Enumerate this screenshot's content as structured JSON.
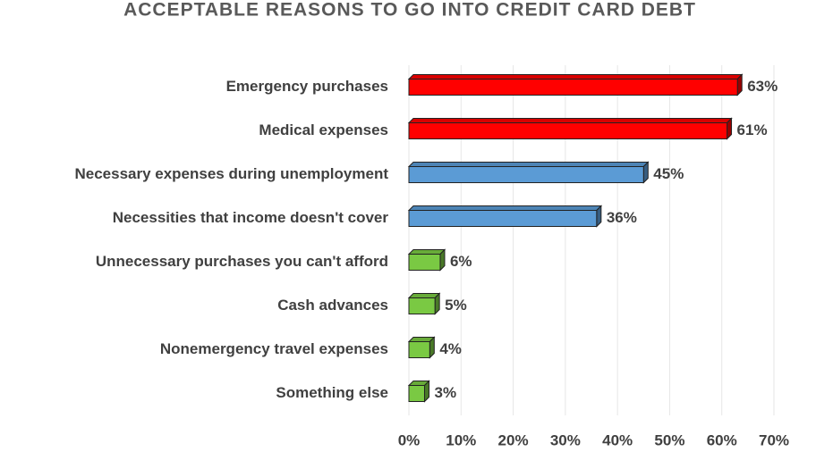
{
  "chart_data": {
    "type": "bar",
    "orientation": "horizontal",
    "title": "ACCEPTABLE REASONS TO GO INTO CREDIT CARD DEBT",
    "categories": [
      "Emergency purchases",
      "Medical expenses",
      "Necessary expenses during unemployment",
      "Necessities that income doesn't cover",
      "Unnecessary purchases you can't afford",
      "Cash advances",
      "Nonemergency travel expenses",
      "Something else"
    ],
    "values": [
      63,
      61,
      45,
      36,
      6,
      5,
      4,
      3
    ],
    "value_labels": [
      "63%",
      "61%",
      "45%",
      "36%",
      "6%",
      "5%",
      "4%",
      "3%"
    ],
    "colors": [
      "#ff0000",
      "#ff0000",
      "#5b9bd5",
      "#5b9bd5",
      "#7ac943",
      "#7ac943",
      "#7ac943",
      "#7ac943"
    ],
    "xlim": [
      0,
      70
    ],
    "xticks": [
      {
        "value": 0,
        "label": "0%"
      },
      {
        "value": 10,
        "label": "10%"
      },
      {
        "value": 20,
        "label": "20%"
      },
      {
        "value": 30,
        "label": "30%"
      },
      {
        "value": 40,
        "label": "40%"
      },
      {
        "value": 50,
        "label": "50%"
      },
      {
        "value": 60,
        "label": "60%"
      },
      {
        "value": 70,
        "label": "70%"
      }
    ],
    "grid": true
  }
}
